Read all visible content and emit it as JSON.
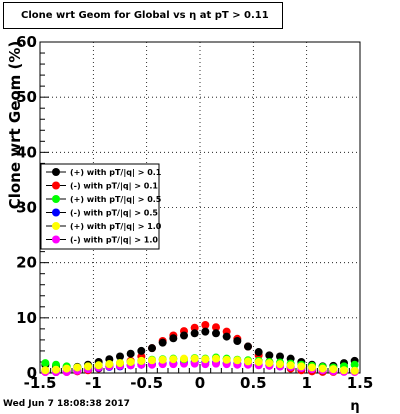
{
  "chart_data": {
    "type": "scatter",
    "title": "Clone wrt Geom for Global vs   η at pT > 0.11",
    "xlabel": "η",
    "ylabel": "Clone wrt Geom (%)",
    "xlim": [
      -1.5,
      1.5
    ],
    "ylim": [
      0,
      60
    ],
    "x_ticks": [
      "-1.5",
      "-1",
      "-0.5",
      "0",
      "0.5",
      "1",
      "1.5"
    ],
    "y_ticks": [
      "0",
      "10",
      "20",
      "30",
      "40",
      "50",
      "60"
    ],
    "grid": true,
    "legend_position": "middle-left",
    "x": [
      -1.45,
      -1.35,
      -1.25,
      -1.15,
      -1.05,
      -0.95,
      -0.85,
      -0.75,
      -0.65,
      -0.55,
      -0.45,
      -0.35,
      -0.25,
      -0.15,
      -0.05,
      0.05,
      0.15,
      0.25,
      0.35,
      0.45,
      0.55,
      0.65,
      0.75,
      0.85,
      0.95,
      1.05,
      1.15,
      1.25,
      1.35,
      1.45
    ],
    "series": [
      {
        "name": "(+) with pT/|q| > 0.1",
        "color": "#000000",
        "values": [
          1.5,
          1.2,
          1.0,
          1.1,
          1.5,
          2.0,
          2.5,
          3.0,
          3.5,
          4.0,
          4.5,
          5.5,
          6.3,
          6.8,
          7.2,
          7.5,
          7.2,
          6.6,
          5.8,
          4.8,
          3.8,
          3.2,
          3.0,
          2.6,
          2.0,
          1.5,
          1.2,
          1.3,
          1.8,
          2.2
        ]
      },
      {
        "name": "(-) with pT/|q| > 0.1",
        "color": "#ff0000",
        "values": [
          0.2,
          0.1,
          0.2,
          0.3,
          0.5,
          0.8,
          1.2,
          1.5,
          2.2,
          3.0,
          4.5,
          5.8,
          6.8,
          7.6,
          8.2,
          8.7,
          8.3,
          7.5,
          6.2,
          4.8,
          3.2,
          2.0,
          1.3,
          0.8,
          0.5,
          0.3,
          0.2,
          0.2,
          0.3,
          0.4
        ]
      },
      {
        "name": "(+) with pT/|q| > 0.5",
        "color": "#00ff00",
        "values": [
          1.8,
          1.5,
          1.2,
          1.0,
          1.2,
          1.4,
          1.6,
          1.8,
          2.0,
          2.2,
          2.4,
          2.5,
          2.6,
          2.5,
          2.7,
          2.6,
          2.8,
          2.6,
          2.4,
          2.3,
          2.2,
          2.0,
          1.9,
          1.7,
          1.5,
          1.3,
          1.1,
          1.0,
          1.2,
          1.5
        ]
      },
      {
        "name": "(-) with pT/|q| > 0.5",
        "color": "#0000ff",
        "values": [
          0.3,
          0.2,
          0.3,
          0.5,
          0.7,
          0.9,
          1.1,
          1.2,
          1.4,
          1.5,
          1.6,
          1.7,
          1.8,
          1.9,
          2.0,
          2.0,
          1.9,
          1.8,
          1.7,
          1.6,
          1.5,
          1.4,
          1.2,
          1.1,
          0.9,
          0.7,
          0.5,
          0.4,
          0.3,
          0.3
        ]
      },
      {
        "name": "(+) with pT/|q| > 1.0",
        "color": "#ffff00",
        "values": [
          0.5,
          0.6,
          0.8,
          1.0,
          1.2,
          1.4,
          1.6,
          1.8,
          2.0,
          2.2,
          2.3,
          2.4,
          2.5,
          2.6,
          2.6,
          2.5,
          2.6,
          2.4,
          2.3,
          2.1,
          2.0,
          1.8,
          1.6,
          1.4,
          1.2,
          1.0,
          0.8,
          0.7,
          0.5,
          0.4
        ]
      },
      {
        "name": "(-) with pT/|q| > 1.0",
        "color": "#ff00ff",
        "values": [
          0.0,
          0.0,
          0.1,
          0.4,
          0.7,
          1.0,
          1.2,
          1.3,
          1.4,
          1.5,
          1.5,
          1.6,
          1.6,
          1.7,
          1.7,
          1.6,
          1.7,
          1.6,
          1.5,
          1.5,
          1.4,
          1.3,
          1.2,
          1.1,
          0.9,
          0.7,
          0.5,
          0.3,
          0.2,
          0.1
        ]
      }
    ]
  },
  "footer": {
    "date": "Wed Jun  7 18:08:38 2017"
  }
}
